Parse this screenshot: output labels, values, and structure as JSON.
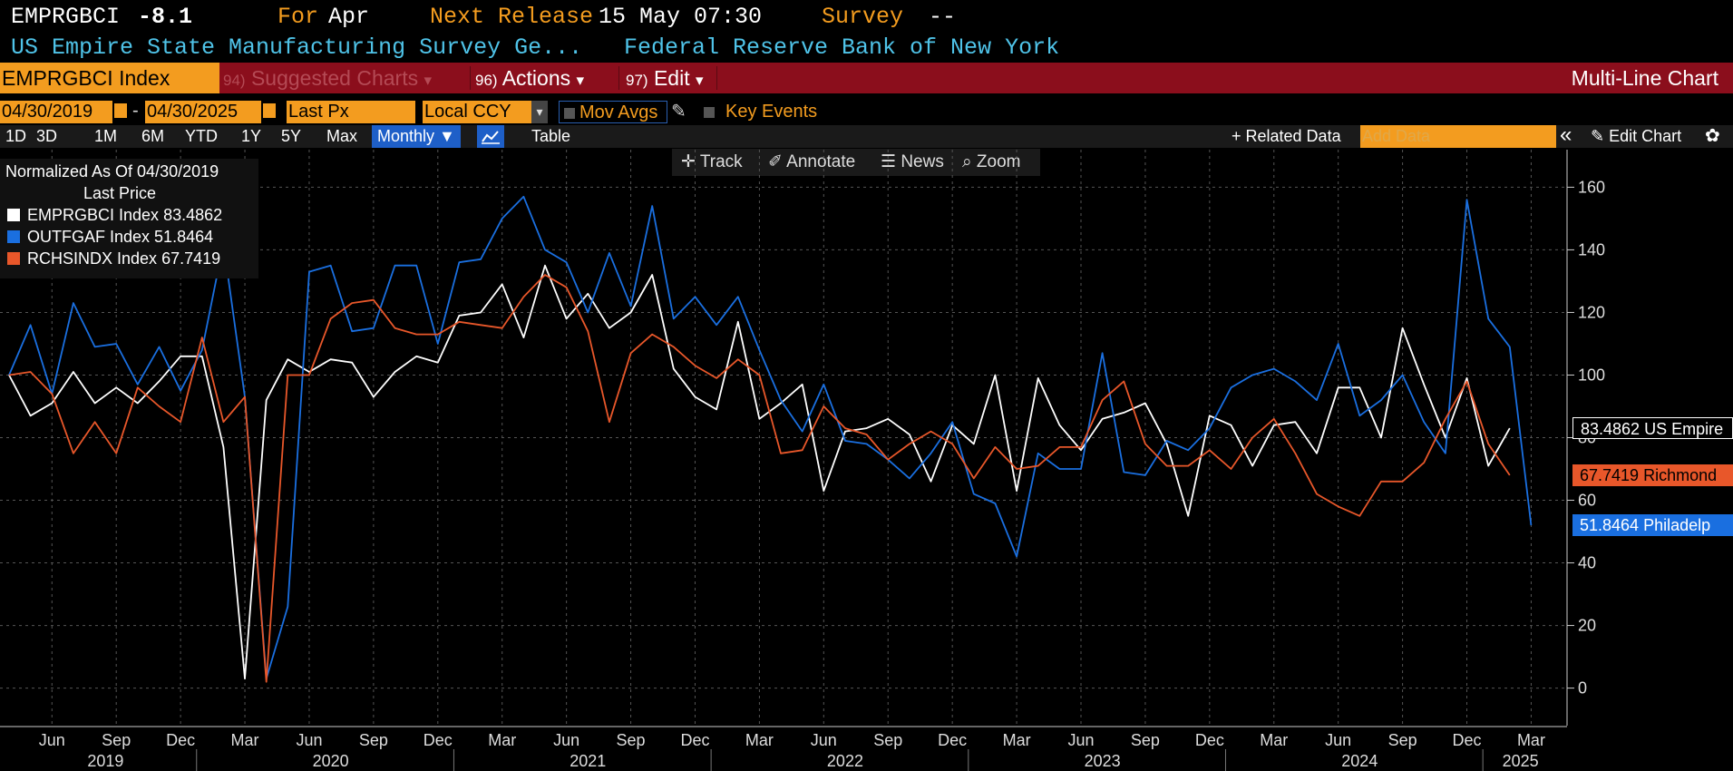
{
  "header": {
    "ticker": "EMPRGBCI",
    "value": "-8.1",
    "for_label": "For",
    "for_value": "Apr",
    "next_release_label": "Next Release",
    "next_release_value": "15 May 07:30",
    "survey_label": "Survey",
    "survey_value": "--",
    "description": "US Empire State Manufacturing Survey Ge...",
    "source": "Federal Reserve Bank of New York"
  },
  "menubar": {
    "security": "EMPRGBCI Index",
    "suggested_num": "94)",
    "suggested_label": "Suggested Charts",
    "actions_num": "96)",
    "actions_label": "Actions",
    "edit_num": "97)",
    "edit_label": "Edit",
    "dropdown_glyph": "▾",
    "view_title": "Multi-Line Chart"
  },
  "controls": {
    "start_date": "04/30/2019",
    "date_sep": "-",
    "end_date": "04/30/2025",
    "field": "Last Px",
    "currency": "Local CCY",
    "mov_avgs": "Mov Avgs",
    "key_events": "Key Events"
  },
  "periods": [
    "1D",
    "3D",
    "1M",
    "6M",
    "YTD",
    "1Y",
    "5Y",
    "Max"
  ],
  "frequency": "Monthly ▼",
  "table_label": "Table",
  "related_data": "+ Related Data",
  "add_data_placeholder": "Add Data",
  "collapse_glyph": "«",
  "edit_chart": "✎ Edit Chart",
  "settings_glyph": "✿",
  "tools": {
    "track": "Track",
    "annotate": "Annotate",
    "news": "News",
    "zoom": "Zoom"
  },
  "legend": {
    "normalized": "Normalized As Of 04/30/2019",
    "last_price": "Last Price",
    "entries": [
      {
        "name": "EMPRGBCI Index",
        "value": "83.4862"
      },
      {
        "name": "OUTFGAF Index",
        "value": "51.8464"
      },
      {
        "name": "RCHSINDX Index",
        "value": "67.7419"
      }
    ]
  },
  "tags": {
    "empire": "83.4862 US Empire",
    "richmond": "67.7419 Richmond",
    "philly": "51.8464 Philadelp"
  },
  "chart_data": {
    "type": "line",
    "x_start": "2019-04",
    "x_end": "2025-04",
    "ylim": [
      -12,
      172
    ],
    "yticks": [
      0,
      20,
      40,
      60,
      80,
      100,
      120,
      140,
      160
    ],
    "grid": true,
    "legend_position": "top-left",
    "x_month_labels": [
      {
        "date": "2019-06",
        "label": "Jun"
      },
      {
        "date": "2019-09",
        "label": "Sep"
      },
      {
        "date": "2019-12",
        "label": "Dec"
      },
      {
        "date": "2020-03",
        "label": "Mar"
      },
      {
        "date": "2020-06",
        "label": "Jun"
      },
      {
        "date": "2020-09",
        "label": "Sep"
      },
      {
        "date": "2020-12",
        "label": "Dec"
      },
      {
        "date": "2021-03",
        "label": "Mar"
      },
      {
        "date": "2021-06",
        "label": "Jun"
      },
      {
        "date": "2021-09",
        "label": "Sep"
      },
      {
        "date": "2021-12",
        "label": "Dec"
      },
      {
        "date": "2022-03",
        "label": "Mar"
      },
      {
        "date": "2022-06",
        "label": "Jun"
      },
      {
        "date": "2022-09",
        "label": "Sep"
      },
      {
        "date": "2022-12",
        "label": "Dec"
      },
      {
        "date": "2023-03",
        "label": "Mar"
      },
      {
        "date": "2023-06",
        "label": "Jun"
      },
      {
        "date": "2023-09",
        "label": "Sep"
      },
      {
        "date": "2023-12",
        "label": "Dec"
      },
      {
        "date": "2024-03",
        "label": "Mar"
      },
      {
        "date": "2024-06",
        "label": "Jun"
      },
      {
        "date": "2024-09",
        "label": "Sep"
      },
      {
        "date": "2024-12",
        "label": "Dec"
      },
      {
        "date": "2025-03",
        "label": "Mar"
      }
    ],
    "x_year_labels": [
      "2019",
      "2020",
      "2021",
      "2022",
      "2023",
      "2024",
      "2025"
    ],
    "series": [
      {
        "name": "EMPRGBCI Index",
        "color": "#ffffff",
        "values": [
          100,
          87,
          91,
          101,
          91,
          96,
          91,
          98,
          106,
          106,
          77,
          3,
          92,
          105,
          101,
          105,
          104,
          93,
          101,
          106,
          104,
          119,
          120,
          129,
          112,
          135,
          118,
          126,
          115,
          120,
          132,
          102,
          93,
          89,
          117,
          86,
          91,
          97,
          63,
          82,
          83,
          86,
          81,
          66,
          84,
          78,
          100,
          63,
          99,
          84,
          76,
          86,
          88,
          91,
          78,
          55,
          87,
          84,
          71,
          84,
          85,
          75,
          96,
          96,
          80,
          115,
          97,
          80,
          99,
          71,
          83
        ]
      },
      {
        "name": "OUTFGAF Index",
        "color": "#1a6fe0",
        "values": [
          100,
          116,
          94,
          123,
          109,
          110,
          97,
          109,
          95,
          108,
          142,
          93,
          3,
          26,
          133,
          135,
          114,
          115,
          135,
          135,
          110,
          136,
          137,
          150,
          157,
          140,
          136,
          120,
          139,
          122,
          154,
          118,
          125,
          116,
          125,
          108,
          92,
          82,
          97,
          79,
          78,
          73,
          67,
          75,
          85,
          62,
          59,
          42,
          75,
          70,
          70,
          107,
          69,
          68,
          79,
          76,
          83,
          96,
          100,
          102,
          98,
          92,
          110,
          87,
          92,
          100,
          85,
          75,
          156,
          118,
          109,
          52
        ]
      },
      {
        "name": "RCHSINDX Index",
        "color": "#e8572a",
        "values": [
          100,
          101,
          94,
          75,
          85,
          75,
          96,
          90,
          85,
          112,
          85,
          93,
          2,
          100,
          100,
          118,
          123,
          124,
          115,
          113,
          113,
          117,
          116,
          115,
          125,
          132,
          128,
          114,
          85,
          107,
          113,
          109,
          103,
          99,
          105,
          100,
          75,
          76,
          90,
          83,
          81,
          73,
          78,
          82,
          78,
          67,
          77,
          70,
          71,
          77,
          77,
          92,
          98,
          78,
          71,
          71,
          76,
          70,
          80,
          86,
          75,
          62,
          58,
          55,
          66,
          66,
          72,
          86,
          98,
          78,
          68
        ]
      }
    ]
  }
}
